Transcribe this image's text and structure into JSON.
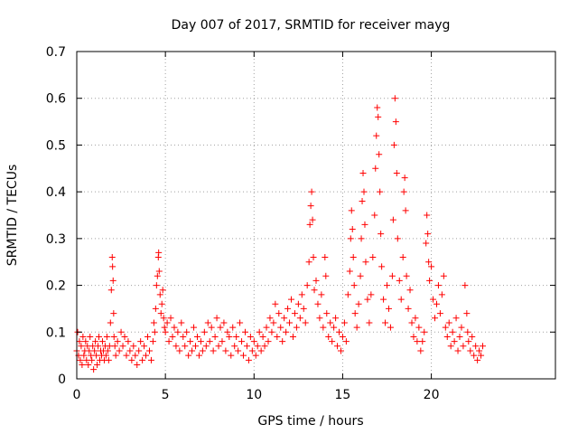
{
  "chart_data": {
    "type": "scatter",
    "title": "Day 007 of 2017, SRMTID for receiver mayg",
    "xlabel": "GPS time / hours",
    "ylabel": "SRMTID / TECUs",
    "xlim": [
      0,
      27
    ],
    "ylim": [
      0,
      0.7
    ],
    "xticks": [
      "0",
      "5",
      "10",
      "15",
      "20"
    ],
    "yticks": [
      "0",
      "0.1",
      "0.2",
      "0.3",
      "0.4",
      "0.5",
      "0.6",
      "0.7"
    ],
    "grid": true,
    "marker": "plus",
    "series": [
      {
        "name": "SRMTID",
        "color": "#ff0000",
        "points": [
          [
            0.0,
            0.06
          ],
          [
            0.05,
            0.1
          ],
          [
            0.1,
            0.05
          ],
          [
            0.15,
            0.08
          ],
          [
            0.2,
            0.04
          ],
          [
            0.25,
            0.07
          ],
          [
            0.3,
            0.03
          ],
          [
            0.35,
            0.09
          ],
          [
            0.4,
            0.05
          ],
          [
            0.45,
            0.06
          ],
          [
            0.5,
            0.08
          ],
          [
            0.55,
            0.04
          ],
          [
            0.6,
            0.07
          ],
          [
            0.65,
            0.03
          ],
          [
            0.7,
            0.06
          ],
          [
            0.75,
            0.09
          ],
          [
            0.8,
            0.05
          ],
          [
            0.85,
            0.04
          ],
          [
            0.9,
            0.07
          ],
          [
            0.95,
            0.02
          ],
          [
            1.0,
            0.06
          ],
          [
            1.05,
            0.08
          ],
          [
            1.1,
            0.05
          ],
          [
            1.15,
            0.03
          ],
          [
            1.2,
            0.07
          ],
          [
            1.25,
            0.09
          ],
          [
            1.3,
            0.04
          ],
          [
            1.35,
            0.06
          ],
          [
            1.4,
            0.05
          ],
          [
            1.45,
            0.08
          ],
          [
            1.5,
            0.06
          ],
          [
            1.55,
            0.04
          ],
          [
            1.6,
            0.07
          ],
          [
            1.65,
            0.05
          ],
          [
            1.7,
            0.09
          ],
          [
            1.75,
            0.06
          ],
          [
            1.8,
            0.04
          ],
          [
            1.85,
            0.07
          ],
          [
            1.9,
            0.12
          ],
          [
            1.95,
            0.19
          ],
          [
            2.0,
            0.26
          ],
          [
            2.02,
            0.24
          ],
          [
            2.05,
            0.21
          ],
          [
            2.08,
            0.14
          ],
          [
            2.1,
            0.09
          ],
          [
            2.15,
            0.07
          ],
          [
            2.2,
            0.05
          ],
          [
            2.3,
            0.08
          ],
          [
            2.4,
            0.06
          ],
          [
            2.5,
            0.1
          ],
          [
            2.6,
            0.07
          ],
          [
            2.7,
            0.09
          ],
          [
            2.8,
            0.05
          ],
          [
            2.9,
            0.08
          ],
          [
            3.0,
            0.06
          ],
          [
            3.1,
            0.04
          ],
          [
            3.2,
            0.07
          ],
          [
            3.3,
            0.05
          ],
          [
            3.4,
            0.03
          ],
          [
            3.5,
            0.06
          ],
          [
            3.6,
            0.08
          ],
          [
            3.7,
            0.04
          ],
          [
            3.8,
            0.07
          ],
          [
            3.9,
            0.05
          ],
          [
            4.0,
            0.09
          ],
          [
            4.1,
            0.06
          ],
          [
            4.2,
            0.04
          ],
          [
            4.3,
            0.08
          ],
          [
            4.35,
            0.12
          ],
          [
            4.4,
            0.1
          ],
          [
            4.45,
            0.15
          ],
          [
            4.5,
            0.2
          ],
          [
            4.55,
            0.22
          ],
          [
            4.6,
            0.26
          ],
          [
            4.62,
            0.27
          ],
          [
            4.65,
            0.23
          ],
          [
            4.7,
            0.18
          ],
          [
            4.75,
            0.14
          ],
          [
            4.8,
            0.16
          ],
          [
            4.85,
            0.19
          ],
          [
            4.9,
            0.13
          ],
          [
            4.95,
            0.11
          ],
          [
            5.0,
            0.1
          ],
          [
            5.1,
            0.12
          ],
          [
            5.2,
            0.08
          ],
          [
            5.3,
            0.13
          ],
          [
            5.4,
            0.09
          ],
          [
            5.5,
            0.11
          ],
          [
            5.6,
            0.07
          ],
          [
            5.7,
            0.1
          ],
          [
            5.8,
            0.06
          ],
          [
            5.9,
            0.12
          ],
          [
            6.0,
            0.09
          ],
          [
            6.1,
            0.07
          ],
          [
            6.2,
            0.1
          ],
          [
            6.3,
            0.05
          ],
          [
            6.4,
            0.08
          ],
          [
            6.5,
            0.06
          ],
          [
            6.6,
            0.11
          ],
          [
            6.7,
            0.07
          ],
          [
            6.8,
            0.09
          ],
          [
            6.9,
            0.05
          ],
          [
            7.0,
            0.08
          ],
          [
            7.1,
            0.06
          ],
          [
            7.2,
            0.1
          ],
          [
            7.3,
            0.07
          ],
          [
            7.4,
            0.12
          ],
          [
            7.5,
            0.08
          ],
          [
            7.6,
            0.11
          ],
          [
            7.7,
            0.06
          ],
          [
            7.8,
            0.09
          ],
          [
            7.9,
            0.13
          ],
          [
            8.0,
            0.07
          ],
          [
            8.1,
            0.11
          ],
          [
            8.2,
            0.08
          ],
          [
            8.3,
            0.12
          ],
          [
            8.4,
            0.06
          ],
          [
            8.5,
            0.1
          ],
          [
            8.6,
            0.09
          ],
          [
            8.7,
            0.05
          ],
          [
            8.8,
            0.11
          ],
          [
            8.9,
            0.07
          ],
          [
            9.0,
            0.09
          ],
          [
            9.1,
            0.06
          ],
          [
            9.2,
            0.12
          ],
          [
            9.3,
            0.08
          ],
          [
            9.4,
            0.05
          ],
          [
            9.5,
            0.1
          ],
          [
            9.6,
            0.07
          ],
          [
            9.7,
            0.04
          ],
          [
            9.8,
            0.09
          ],
          [
            9.9,
            0.06
          ],
          [
            10.0,
            0.08
          ],
          [
            10.1,
            0.05
          ],
          [
            10.2,
            0.07
          ],
          [
            10.3,
            0.1
          ],
          [
            10.4,
            0.06
          ],
          [
            10.5,
            0.09
          ],
          [
            10.6,
            0.07
          ],
          [
            10.7,
            0.11
          ],
          [
            10.8,
            0.08
          ],
          [
            10.9,
            0.13
          ],
          [
            11.0,
            0.1
          ],
          [
            11.1,
            0.12
          ],
          [
            11.2,
            0.16
          ],
          [
            11.3,
            0.09
          ],
          [
            11.4,
            0.14
          ],
          [
            11.5,
            0.11
          ],
          [
            11.6,
            0.08
          ],
          [
            11.7,
            0.13
          ],
          [
            11.8,
            0.1
          ],
          [
            11.9,
            0.15
          ],
          [
            12.0,
            0.12
          ],
          [
            12.1,
            0.17
          ],
          [
            12.2,
            0.09
          ],
          [
            12.3,
            0.14
          ],
          [
            12.4,
            0.11
          ],
          [
            12.5,
            0.16
          ],
          [
            12.6,
            0.13
          ],
          [
            12.7,
            0.18
          ],
          [
            12.8,
            0.15
          ],
          [
            12.9,
            0.12
          ],
          [
            13.0,
            0.2
          ],
          [
            13.1,
            0.25
          ],
          [
            13.15,
            0.33
          ],
          [
            13.2,
            0.37
          ],
          [
            13.25,
            0.4
          ],
          [
            13.3,
            0.34
          ],
          [
            13.35,
            0.26
          ],
          [
            13.4,
            0.19
          ],
          [
            13.5,
            0.21
          ],
          [
            13.6,
            0.16
          ],
          [
            13.7,
            0.13
          ],
          [
            13.8,
            0.18
          ],
          [
            13.9,
            0.11
          ],
          [
            14.0,
            0.26
          ],
          [
            14.05,
            0.22
          ],
          [
            14.1,
            0.14
          ],
          [
            14.2,
            0.09
          ],
          [
            14.3,
            0.12
          ],
          [
            14.4,
            0.08
          ],
          [
            14.5,
            0.11
          ],
          [
            14.6,
            0.13
          ],
          [
            14.7,
            0.07
          ],
          [
            14.8,
            0.1
          ],
          [
            14.9,
            0.06
          ],
          [
            15.0,
            0.09
          ],
          [
            15.1,
            0.12
          ],
          [
            15.2,
            0.08
          ],
          [
            15.3,
            0.18
          ],
          [
            15.4,
            0.23
          ],
          [
            15.45,
            0.3
          ],
          [
            15.5,
            0.36
          ],
          [
            15.55,
            0.32
          ],
          [
            15.6,
            0.26
          ],
          [
            15.65,
            0.2
          ],
          [
            15.7,
            0.14
          ],
          [
            15.8,
            0.11
          ],
          [
            15.9,
            0.16
          ],
          [
            16.0,
            0.22
          ],
          [
            16.05,
            0.3
          ],
          [
            16.1,
            0.38
          ],
          [
            16.15,
            0.44
          ],
          [
            16.2,
            0.4
          ],
          [
            16.25,
            0.33
          ],
          [
            16.3,
            0.25
          ],
          [
            16.4,
            0.17
          ],
          [
            16.5,
            0.12
          ],
          [
            16.6,
            0.18
          ],
          [
            16.7,
            0.26
          ],
          [
            16.8,
            0.35
          ],
          [
            16.85,
            0.45
          ],
          [
            16.9,
            0.52
          ],
          [
            16.95,
            0.58
          ],
          [
            17.0,
            0.56
          ],
          [
            17.05,
            0.48
          ],
          [
            17.1,
            0.4
          ],
          [
            17.15,
            0.31
          ],
          [
            17.2,
            0.24
          ],
          [
            17.3,
            0.17
          ],
          [
            17.4,
            0.12
          ],
          [
            17.5,
            0.2
          ],
          [
            17.6,
            0.15
          ],
          [
            17.7,
            0.11
          ],
          [
            17.8,
            0.22
          ],
          [
            17.85,
            0.34
          ],
          [
            17.9,
            0.5
          ],
          [
            17.95,
            0.6
          ],
          [
            18.0,
            0.55
          ],
          [
            18.05,
            0.44
          ],
          [
            18.1,
            0.3
          ],
          [
            18.2,
            0.21
          ],
          [
            18.3,
            0.17
          ],
          [
            18.4,
            0.26
          ],
          [
            18.45,
            0.4
          ],
          [
            18.5,
            0.43
          ],
          [
            18.55,
            0.36
          ],
          [
            18.6,
            0.22
          ],
          [
            18.7,
            0.15
          ],
          [
            18.8,
            0.19
          ],
          [
            18.9,
            0.12
          ],
          [
            19.0,
            0.09
          ],
          [
            19.1,
            0.13
          ],
          [
            19.2,
            0.08
          ],
          [
            19.3,
            0.11
          ],
          [
            19.4,
            0.06
          ],
          [
            19.5,
            0.08
          ],
          [
            19.6,
            0.1
          ],
          [
            19.7,
            0.29
          ],
          [
            19.75,
            0.35
          ],
          [
            19.8,
            0.31
          ],
          [
            19.85,
            0.25
          ],
          [
            19.9,
            0.21
          ],
          [
            20.0,
            0.24
          ],
          [
            20.1,
            0.17
          ],
          [
            20.2,
            0.13
          ],
          [
            20.3,
            0.16
          ],
          [
            20.4,
            0.2
          ],
          [
            20.5,
            0.14
          ],
          [
            20.6,
            0.18
          ],
          [
            20.7,
            0.22
          ],
          [
            20.8,
            0.11
          ],
          [
            20.9,
            0.09
          ],
          [
            21.0,
            0.12
          ],
          [
            21.1,
            0.07
          ],
          [
            21.2,
            0.1
          ],
          [
            21.3,
            0.08
          ],
          [
            21.4,
            0.13
          ],
          [
            21.5,
            0.06
          ],
          [
            21.6,
            0.09
          ],
          [
            21.7,
            0.11
          ],
          [
            21.8,
            0.07
          ],
          [
            21.9,
            0.2
          ],
          [
            22.0,
            0.14
          ],
          [
            22.05,
            0.1
          ],
          [
            22.1,
            0.08
          ],
          [
            22.2,
            0.06
          ],
          [
            22.3,
            0.09
          ],
          [
            22.4,
            0.05
          ],
          [
            22.5,
            0.07
          ],
          [
            22.6,
            0.04
          ],
          [
            22.7,
            0.06
          ],
          [
            22.8,
            0.05
          ],
          [
            22.9,
            0.07
          ]
        ]
      }
    ]
  }
}
